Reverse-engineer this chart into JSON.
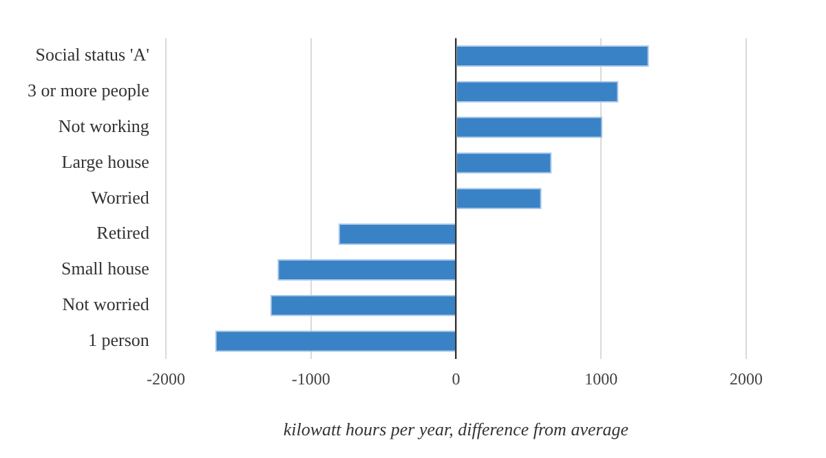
{
  "chart_data": {
    "type": "bar",
    "orientation": "horizontal",
    "xlabel": "kilowatt hours per year, difference from average",
    "categories": [
      "Social status 'A'",
      "3 or more people",
      "Not working",
      "Large house",
      "Worried",
      "Retired",
      "Small house",
      "Not worried",
      "1 person"
    ],
    "values": [
      1330,
      1120,
      1010,
      660,
      590,
      -810,
      -1230,
      -1280,
      -1660
    ],
    "color": "#3a82c6",
    "xlim": [
      -2000,
      2000
    ],
    "xticks": [
      -2000,
      -1000,
      0,
      1000,
      2000
    ],
    "grid": "x",
    "legend": false
  }
}
